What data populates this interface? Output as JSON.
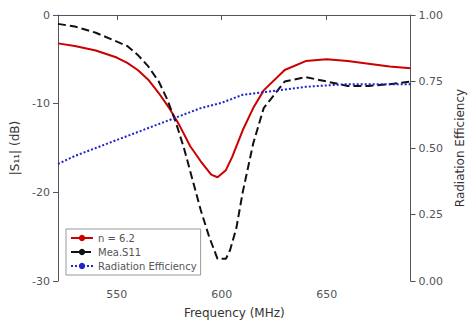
{
  "chart_data": {
    "type": "line",
    "xlabel": "Frequency (MHz)",
    "ylabel": "|S₁₁| (dB)",
    "y2label": "Radiation Efficiency",
    "xlim": [
      522,
      690
    ],
    "xticks": [
      550,
      600,
      650
    ],
    "ylim": [
      -30,
      0
    ],
    "yticks": [
      0,
      -10,
      -20,
      -30
    ],
    "y2lim": [
      0.0,
      1.0
    ],
    "y2ticks": [
      {
        "value": 0.0,
        "label": "0.00"
      },
      0.25,
      {
        "value": 0.5,
        "label": "0.50"
      },
      0.75,
      {
        "value": 1.0,
        "label": "1.00"
      }
    ],
    "grid": false,
    "legend": "lower left",
    "series": [
      {
        "name": "n = 6.2",
        "color": "#cc0000",
        "line_style": "solid",
        "x": [
          522,
          530,
          540,
          550,
          555,
          560,
          565,
          570,
          575,
          580,
          585,
          590,
          595,
          598,
          602,
          605,
          610,
          615,
          620,
          630,
          640,
          650,
          660,
          670,
          680,
          690
        ],
        "values": [
          -3.2,
          -3.5,
          -4.0,
          -4.8,
          -5.4,
          -6.2,
          -7.3,
          -8.8,
          -10.5,
          -12.5,
          -14.8,
          -16.5,
          -18.0,
          -18.3,
          -17.5,
          -16.0,
          -13.0,
          -10.5,
          -8.5,
          -6.2,
          -5.2,
          -5.0,
          -5.2,
          -5.5,
          -5.8,
          -6.0
        ]
      },
      {
        "name": "Mea.S11",
        "color": "#111111",
        "line_style": "dashed",
        "x": [
          522,
          530,
          540,
          548,
          555,
          560,
          565,
          570,
          574,
          578,
          582,
          586,
          590,
          594,
          598,
          602,
          604,
          607,
          610,
          615,
          620,
          630,
          640,
          650,
          660,
          670,
          680,
          690
        ],
        "values": [
          -1.0,
          -1.3,
          -2.0,
          -2.8,
          -3.5,
          -4.5,
          -5.8,
          -7.5,
          -9.5,
          -12.0,
          -15.0,
          -18.5,
          -22.0,
          -25.0,
          -27.5,
          -27.5,
          -26.5,
          -24.0,
          -20.0,
          -14.5,
          -10.5,
          -7.5,
          -7.0,
          -7.5,
          -8.0,
          -8.0,
          -7.8,
          -7.5
        ]
      },
      {
        "name": "Radiation Efficiency",
        "color": "#2222cc",
        "line_style": "dotted",
        "axis": "y2",
        "x": [
          522,
          530,
          540,
          550,
          560,
          570,
          580,
          590,
          600,
          610,
          620,
          630,
          640,
          650,
          660,
          670,
          680,
          690
        ],
        "values": [
          0.44,
          0.47,
          0.5,
          0.53,
          0.56,
          0.59,
          0.62,
          0.65,
          0.67,
          0.7,
          0.71,
          0.72,
          0.73,
          0.735,
          0.74,
          0.74,
          0.74,
          0.74
        ]
      }
    ]
  }
}
